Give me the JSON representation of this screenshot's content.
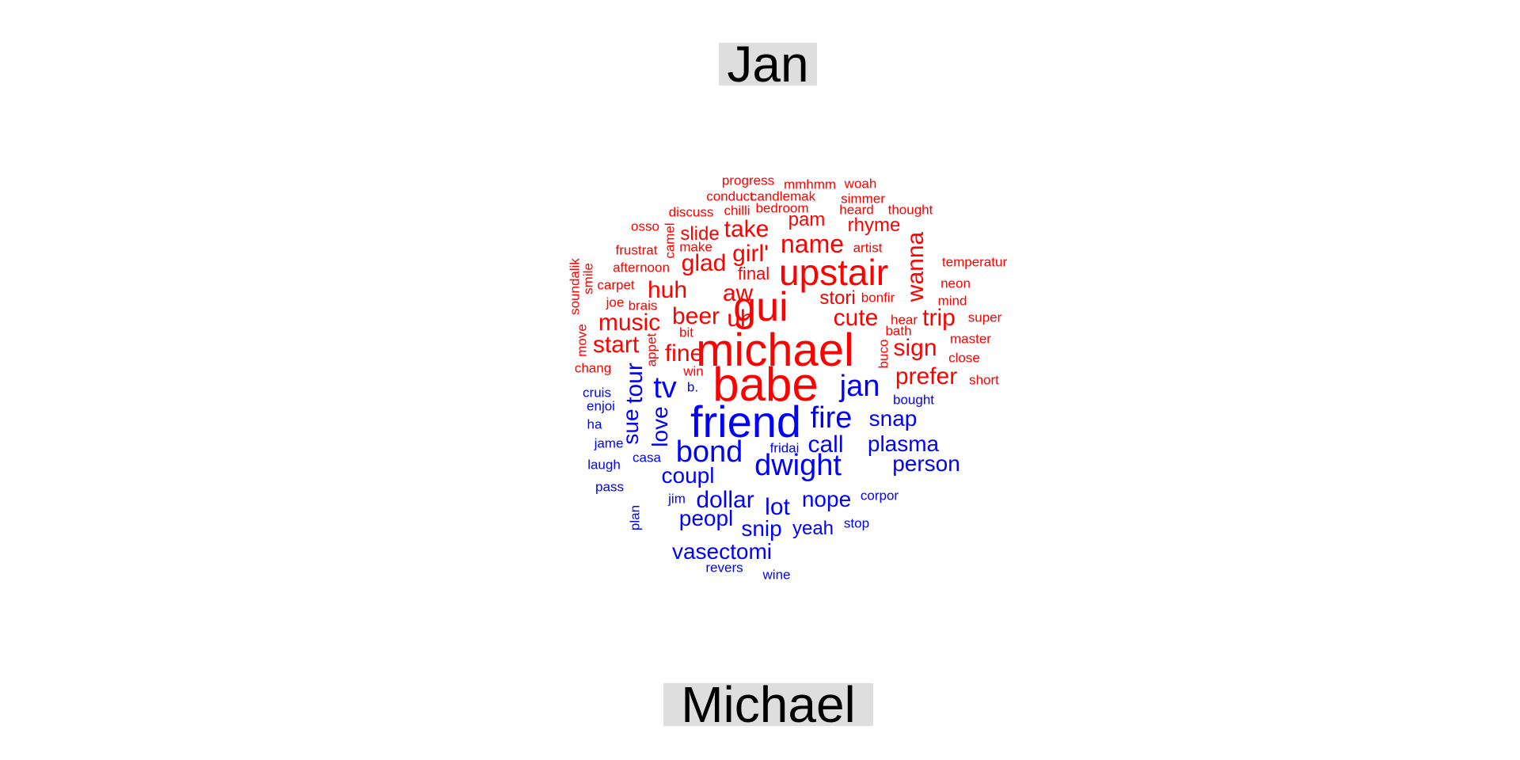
{
  "labels": {
    "top": "Jan",
    "bottom": "Michael"
  },
  "colors": {
    "top_group": "#ff0000",
    "bottom_group": "#0000ff",
    "label_background": "#dedede"
  },
  "words": [
    {
      "text": "progress",
      "group": "top",
      "weight": 1
    },
    {
      "text": "mmhmm",
      "group": "top",
      "weight": 1
    },
    {
      "text": "woah",
      "group": "top",
      "weight": 1
    },
    {
      "text": "conduct",
      "group": "top",
      "weight": 1
    },
    {
      "text": "candlemak",
      "group": "top",
      "weight": 1
    },
    {
      "text": "simmer",
      "group": "top",
      "weight": 1
    },
    {
      "text": "discuss",
      "group": "top",
      "weight": 1
    },
    {
      "text": "chilli",
      "group": "top",
      "weight": 1
    },
    {
      "text": "bedroom",
      "group": "top",
      "weight": 1
    },
    {
      "text": "heard",
      "group": "top",
      "weight": 1
    },
    {
      "text": "thought",
      "group": "top",
      "weight": 1
    },
    {
      "text": "osso",
      "group": "top",
      "weight": 1
    },
    {
      "text": "camel",
      "group": "top",
      "weight": 1
    },
    {
      "text": "slide",
      "group": "top",
      "weight": 2
    },
    {
      "text": "take",
      "group": "top",
      "weight": 3
    },
    {
      "text": "pam",
      "group": "top",
      "weight": 2
    },
    {
      "text": "rhyme",
      "group": "top",
      "weight": 2
    },
    {
      "text": "frustrat",
      "group": "top",
      "weight": 1
    },
    {
      "text": "make",
      "group": "top",
      "weight": 1
    },
    {
      "text": "name",
      "group": "top",
      "weight": 3
    },
    {
      "text": "artist",
      "group": "top",
      "weight": 1
    },
    {
      "text": "wanna",
      "group": "top",
      "weight": 3
    },
    {
      "text": "afternoon",
      "group": "top",
      "weight": 1
    },
    {
      "text": "glad",
      "group": "top",
      "weight": 3
    },
    {
      "text": "girl'",
      "group": "top",
      "weight": 3
    },
    {
      "text": "upstair",
      "group": "top",
      "weight": 5
    },
    {
      "text": "temperatur",
      "group": "top",
      "weight": 1
    },
    {
      "text": "soundalik",
      "group": "top",
      "weight": 1
    },
    {
      "text": "smile",
      "group": "top",
      "weight": 1
    },
    {
      "text": "carpet",
      "group": "top",
      "weight": 1
    },
    {
      "text": "final",
      "group": "top",
      "weight": 2
    },
    {
      "text": "neon",
      "group": "top",
      "weight": 1
    },
    {
      "text": "huh",
      "group": "top",
      "weight": 3
    },
    {
      "text": "aw",
      "group": "top",
      "weight": 3
    },
    {
      "text": "stori",
      "group": "top",
      "weight": 2
    },
    {
      "text": "bonfir",
      "group": "top",
      "weight": 1
    },
    {
      "text": "mind",
      "group": "top",
      "weight": 1
    },
    {
      "text": "joe",
      "group": "top",
      "weight": 1
    },
    {
      "text": "brais",
      "group": "top",
      "weight": 1
    },
    {
      "text": "gui",
      "group": "top",
      "weight": 6
    },
    {
      "text": "trip",
      "group": "top",
      "weight": 3
    },
    {
      "text": "super",
      "group": "top",
      "weight": 1
    },
    {
      "text": "beer",
      "group": "top",
      "weight": 3
    },
    {
      "text": "uh",
      "group": "top",
      "weight": 3
    },
    {
      "text": "cute",
      "group": "top",
      "weight": 3
    },
    {
      "text": "hear",
      "group": "top",
      "weight": 1
    },
    {
      "text": "music",
      "group": "top",
      "weight": 3
    },
    {
      "text": "bath",
      "group": "top",
      "weight": 1
    },
    {
      "text": "bit",
      "group": "top",
      "weight": 1
    },
    {
      "text": "move",
      "group": "top",
      "weight": 1
    },
    {
      "text": "appet",
      "group": "top",
      "weight": 1
    },
    {
      "text": "master",
      "group": "top",
      "weight": 1
    },
    {
      "text": "start",
      "group": "top",
      "weight": 3
    },
    {
      "text": "michael",
      "group": "top",
      "weight": 7
    },
    {
      "text": "buco",
      "group": "top",
      "weight": 1
    },
    {
      "text": "sign",
      "group": "top",
      "weight": 3
    },
    {
      "text": "fine",
      "group": "top",
      "weight": 3
    },
    {
      "text": "close",
      "group": "top",
      "weight": 1
    },
    {
      "text": "chang",
      "group": "top",
      "weight": 1
    },
    {
      "text": "win",
      "group": "top",
      "weight": 1
    },
    {
      "text": "babe",
      "group": "top",
      "weight": 8
    },
    {
      "text": "prefer",
      "group": "top",
      "weight": 3
    },
    {
      "text": "short",
      "group": "top",
      "weight": 1
    },
    {
      "text": "tour",
      "group": "bottom",
      "weight": 3
    },
    {
      "text": "tv",
      "group": "bottom",
      "weight": 4
    },
    {
      "text": "jan",
      "group": "bottom",
      "weight": 4
    },
    {
      "text": "b.",
      "group": "bottom",
      "weight": 1
    },
    {
      "text": "cruis",
      "group": "bottom",
      "weight": 1
    },
    {
      "text": "bought",
      "group": "bottom",
      "weight": 1
    },
    {
      "text": "enjoi",
      "group": "bottom",
      "weight": 1
    },
    {
      "text": "friend",
      "group": "bottom",
      "weight": 8
    },
    {
      "text": "fire",
      "group": "bottom",
      "weight": 4
    },
    {
      "text": "snap",
      "group": "bottom",
      "weight": 3
    },
    {
      "text": "sue",
      "group": "bottom",
      "weight": 3
    },
    {
      "text": "love",
      "group": "bottom",
      "weight": 3
    },
    {
      "text": "ha",
      "group": "bottom",
      "weight": 1
    },
    {
      "text": "jame",
      "group": "bottom",
      "weight": 1
    },
    {
      "text": "fridai",
      "group": "bottom",
      "weight": 1
    },
    {
      "text": "call",
      "group": "bottom",
      "weight": 3
    },
    {
      "text": "plasma",
      "group": "bottom",
      "weight": 3
    },
    {
      "text": "bond",
      "group": "bottom",
      "weight": 4
    },
    {
      "text": "casa",
      "group": "bottom",
      "weight": 1
    },
    {
      "text": "laugh",
      "group": "bottom",
      "weight": 1
    },
    {
      "text": "dwight",
      "group": "bottom",
      "weight": 5
    },
    {
      "text": "person",
      "group": "bottom",
      "weight": 3
    },
    {
      "text": "coupl",
      "group": "bottom",
      "weight": 3
    },
    {
      "text": "pass",
      "group": "bottom",
      "weight": 1
    },
    {
      "text": "corpor",
      "group": "bottom",
      "weight": 1
    },
    {
      "text": "jim",
      "group": "bottom",
      "weight": 2
    },
    {
      "text": "dollar",
      "group": "bottom",
      "weight": 3
    },
    {
      "text": "nope",
      "group": "bottom",
      "weight": 3
    },
    {
      "text": "lot",
      "group": "bottom",
      "weight": 3
    },
    {
      "text": "plan",
      "group": "bottom",
      "weight": 1
    },
    {
      "text": "peopl",
      "group": "bottom",
      "weight": 3
    },
    {
      "text": "stop",
      "group": "bottom",
      "weight": 1
    },
    {
      "text": "snip",
      "group": "bottom",
      "weight": 3
    },
    {
      "text": "yeah",
      "group": "bottom",
      "weight": 2
    },
    {
      "text": "vasectomi",
      "group": "bottom",
      "weight": 3
    },
    {
      "text": "revers",
      "group": "bottom",
      "weight": 1
    },
    {
      "text": "wine",
      "group": "bottom",
      "weight": 1
    }
  ]
}
